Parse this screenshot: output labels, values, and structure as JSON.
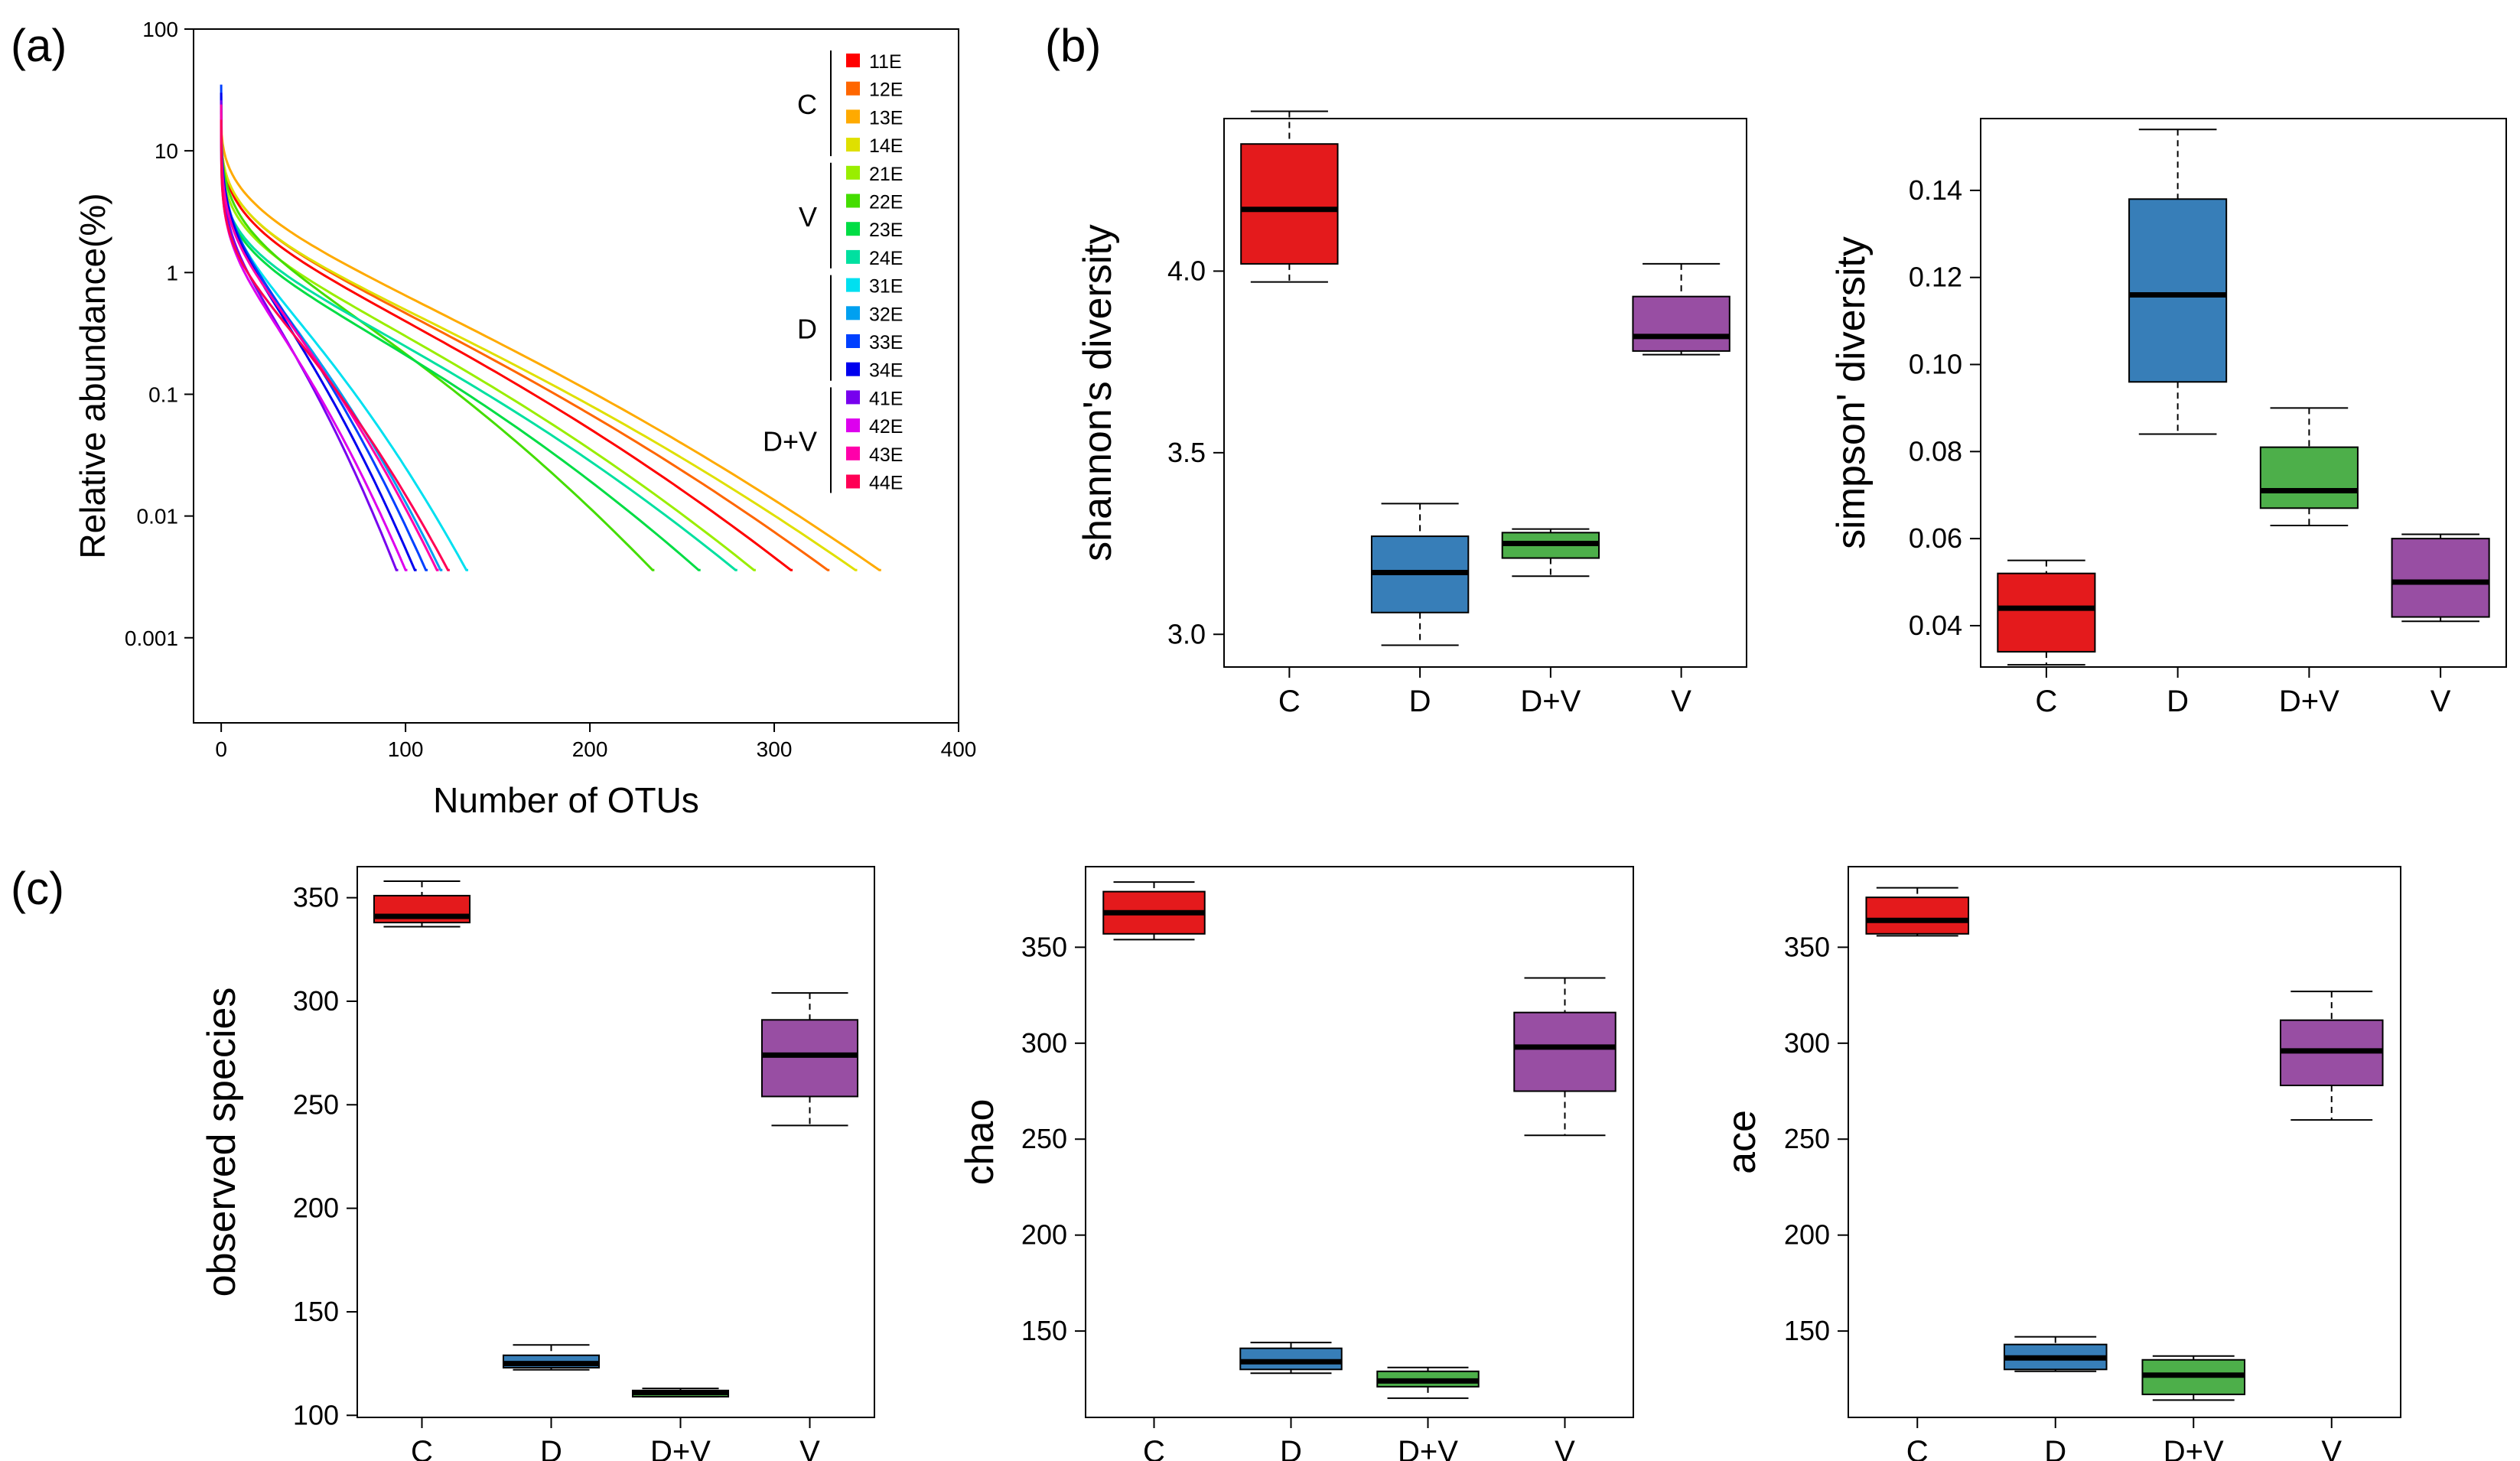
{
  "panels": [
    {
      "id": "a",
      "label": "(a)"
    },
    {
      "id": "b",
      "label": "(b)"
    },
    {
      "id": "c",
      "label": "(c)"
    }
  ],
  "chart_data": [
    {
      "id": "rank_abundance",
      "panel": "a",
      "type": "line",
      "title": "",
      "xlabel": "Number of OTUs",
      "ylabel": "Relative abundance(%)",
      "xlim": [
        -15,
        400
      ],
      "ylim": [
        0.0002,
        100
      ],
      "yscale": "log",
      "xticks": [
        0,
        100,
        200,
        300,
        400
      ],
      "yticks": [
        {
          "value": 100,
          "label": "100"
        },
        {
          "value": 10,
          "label": "10"
        },
        {
          "value": 1,
          "label": "1"
        },
        {
          "value": 0.1,
          "label": "0.1"
        },
        {
          "value": 0.01,
          "label": "0.01"
        },
        {
          "value": 0.001,
          "label": "0.001"
        }
      ],
      "legend_groups": [
        {
          "label": "C",
          "entries": [
            "11E",
            "12E",
            "13E",
            "14E"
          ]
        },
        {
          "label": "V",
          "entries": [
            "21E",
            "22E",
            "23E",
            "24E"
          ]
        },
        {
          "label": "D",
          "entries": [
            "31E",
            "32E",
            "33E",
            "34E"
          ]
        },
        {
          "label": "D+V",
          "entries": [
            "41E",
            "42E",
            "43E",
            "44E"
          ]
        }
      ],
      "series": [
        {
          "name": "11E",
          "color": "#ff0000",
          "start": 18,
          "bend": 1.1,
          "end_x": 310,
          "end_y": 0.0036
        },
        {
          "name": "12E",
          "color": "#ff6600",
          "start": 16,
          "bend": 1.2,
          "end_x": 330,
          "end_y": 0.0036
        },
        {
          "name": "13E",
          "color": "#ffaa00",
          "start": 20,
          "bend": 1.25,
          "end_x": 358,
          "end_y": 0.0036
        },
        {
          "name": "14E",
          "color": "#dfe000",
          "start": 17,
          "bend": 1.15,
          "end_x": 345,
          "end_y": 0.0036
        },
        {
          "name": "21E",
          "color": "#99ee00",
          "start": 15,
          "bend": 1.05,
          "end_x": 290,
          "end_y": 0.0036
        },
        {
          "name": "22E",
          "color": "#44dd00",
          "start": 22,
          "bend": 1.0,
          "end_x": 235,
          "end_y": 0.0036
        },
        {
          "name": "23E",
          "color": "#00dd44",
          "start": 14,
          "bend": 0.95,
          "end_x": 260,
          "end_y": 0.0036
        },
        {
          "name": "24E",
          "color": "#00e0a0",
          "start": 13,
          "bend": 1.0,
          "end_x": 280,
          "end_y": 0.0036
        },
        {
          "name": "31E",
          "color": "#00e0f0",
          "start": 25,
          "bend": 0.9,
          "end_x": 134,
          "end_y": 0.0036
        },
        {
          "name": "32E",
          "color": "#00a0f0",
          "start": 28,
          "bend": 0.85,
          "end_x": 120,
          "end_y": 0.0036
        },
        {
          "name": "33E",
          "color": "#0040ff",
          "start": 35,
          "bend": 0.85,
          "end_x": 112,
          "end_y": 0.0036
        },
        {
          "name": "34E",
          "color": "#0000ee",
          "start": 30,
          "bend": 0.9,
          "end_x": 106,
          "end_y": 0.0036
        },
        {
          "name": "41E",
          "color": "#7700ee",
          "start": 26,
          "bend": 0.85,
          "end_x": 96,
          "end_y": 0.0036
        },
        {
          "name": "42E",
          "color": "#dd00ee",
          "start": 20,
          "bend": 0.85,
          "end_x": 101,
          "end_y": 0.0036
        },
        {
          "name": "43E",
          "color": "#ff00aa",
          "start": 24,
          "bend": 0.9,
          "end_x": 118,
          "end_y": 0.0036
        },
        {
          "name": "44E",
          "color": "#ff0055",
          "start": 18,
          "bend": 0.85,
          "end_x": 124,
          "end_y": 0.0036
        }
      ]
    },
    {
      "id": "shannon",
      "panel": "b",
      "type": "box",
      "ylabel": "shannon's diversity",
      "categories": [
        "C",
        "D",
        "D+V",
        "V"
      ],
      "ylim": [
        2.91,
        4.42
      ],
      "yticks": [
        {
          "value": 3.0,
          "label": "3.0"
        },
        {
          "value": 3.5,
          "label": "3.5"
        },
        {
          "value": 4.0,
          "label": "4.0"
        }
      ],
      "boxes": [
        {
          "name": "C",
          "color": "#e41a1c",
          "min": 3.97,
          "q1": 4.02,
          "median": 4.17,
          "q3": 4.35,
          "max": 4.44
        },
        {
          "name": "D",
          "color": "#377eb8",
          "min": 2.97,
          "q1": 3.06,
          "median": 3.17,
          "q3": 3.27,
          "max": 3.36
        },
        {
          "name": "D+V",
          "color": "#4daf4a",
          "min": 3.16,
          "q1": 3.21,
          "median": 3.25,
          "q3": 3.28,
          "max": 3.29
        },
        {
          "name": "V",
          "color": "#984ea3",
          "min": 3.77,
          "q1": 3.78,
          "median": 3.82,
          "q3": 3.93,
          "max": 4.02
        }
      ]
    },
    {
      "id": "simpson",
      "panel": "b",
      "type": "box",
      "ylabel": "simpson' diversity",
      "categories": [
        "C",
        "D",
        "D+V",
        "V"
      ],
      "ylim": [
        0.0305,
        0.1565
      ],
      "yticks": [
        {
          "value": 0.04,
          "label": "0.04"
        },
        {
          "value": 0.06,
          "label": "0.06"
        },
        {
          "value": 0.08,
          "label": "0.08"
        },
        {
          "value": 0.1,
          "label": "0.10"
        },
        {
          "value": 0.12,
          "label": "0.12"
        },
        {
          "value": 0.14,
          "label": "0.14"
        }
      ],
      "boxes": [
        {
          "name": "C",
          "color": "#e41a1c",
          "min": 0.031,
          "q1": 0.034,
          "median": 0.044,
          "q3": 0.052,
          "max": 0.055
        },
        {
          "name": "D",
          "color": "#377eb8",
          "min": 0.084,
          "q1": 0.096,
          "median": 0.116,
          "q3": 0.138,
          "max": 0.154
        },
        {
          "name": "D+V",
          "color": "#4daf4a",
          "min": 0.063,
          "q1": 0.067,
          "median": 0.071,
          "q3": 0.081,
          "max": 0.09
        },
        {
          "name": "V",
          "color": "#984ea3",
          "min": 0.041,
          "q1": 0.042,
          "median": 0.05,
          "q3": 0.06,
          "max": 0.061
        }
      ]
    },
    {
      "id": "observed",
      "panel": "c",
      "type": "box",
      "ylabel": "observed species",
      "categories": [
        "C",
        "D",
        "D+V",
        "V"
      ],
      "ylim": [
        99,
        365
      ],
      "yticks": [
        {
          "value": 100,
          "label": "100"
        },
        {
          "value": 150,
          "label": "150"
        },
        {
          "value": 200,
          "label": "200"
        },
        {
          "value": 250,
          "label": "250"
        },
        {
          "value": 300,
          "label": "300"
        },
        {
          "value": 350,
          "label": "350"
        }
      ],
      "boxes": [
        {
          "name": "C",
          "color": "#e41a1c",
          "min": 336,
          "q1": 338,
          "median": 341,
          "q3": 351,
          "max": 358
        },
        {
          "name": "D",
          "color": "#377eb8",
          "min": 122,
          "q1": 123,
          "median": 125,
          "q3": 129,
          "max": 134
        },
        {
          "name": "D+V",
          "color": "#4daf4a",
          "min": 109,
          "q1": 109,
          "median": 111,
          "q3": 112,
          "max": 113
        },
        {
          "name": "V",
          "color": "#984ea3",
          "min": 240,
          "q1": 254,
          "median": 274,
          "q3": 291,
          "max": 304
        }
      ]
    },
    {
      "id": "chao",
      "panel": "c",
      "type": "box",
      "ylabel": "chao",
      "categories": [
        "C",
        "D",
        "D+V",
        "V"
      ],
      "ylim": [
        105,
        392
      ],
      "yticks": [
        {
          "value": 150,
          "label": "150"
        },
        {
          "value": 200,
          "label": "200"
        },
        {
          "value": 250,
          "label": "250"
        },
        {
          "value": 300,
          "label": "300"
        },
        {
          "value": 350,
          "label": "350"
        }
      ],
      "boxes": [
        {
          "name": "C",
          "color": "#e41a1c",
          "min": 354,
          "q1": 357,
          "median": 368,
          "q3": 379,
          "max": 384
        },
        {
          "name": "D",
          "color": "#377eb8",
          "min": 128,
          "q1": 130,
          "median": 134,
          "q3": 141,
          "max": 144
        },
        {
          "name": "D+V",
          "color": "#4daf4a",
          "min": 115,
          "q1": 121,
          "median": 124,
          "q3": 129,
          "max": 131
        },
        {
          "name": "V",
          "color": "#984ea3",
          "min": 252,
          "q1": 275,
          "median": 298,
          "q3": 316,
          "max": 334
        }
      ]
    },
    {
      "id": "ace",
      "panel": "c",
      "type": "box",
      "ylabel": "ace",
      "categories": [
        "C",
        "D",
        "D+V",
        "V"
      ],
      "ylim": [
        105,
        392
      ],
      "yticks": [
        {
          "value": 150,
          "label": "150"
        },
        {
          "value": 200,
          "label": "200"
        },
        {
          "value": 250,
          "label": "250"
        },
        {
          "value": 300,
          "label": "300"
        },
        {
          "value": 350,
          "label": "350"
        }
      ],
      "boxes": [
        {
          "name": "C",
          "color": "#e41a1c",
          "min": 356,
          "q1": 357,
          "median": 364,
          "q3": 376,
          "max": 381
        },
        {
          "name": "D",
          "color": "#377eb8",
          "min": 129,
          "q1": 130,
          "median": 136,
          "q3": 143,
          "max": 147
        },
        {
          "name": "D+V",
          "color": "#4daf4a",
          "min": 114,
          "q1": 117,
          "median": 127,
          "q3": 135,
          "max": 137
        },
        {
          "name": "V",
          "color": "#984ea3",
          "min": 260,
          "q1": 278,
          "median": 296,
          "q3": 312,
          "max": 327
        }
      ]
    }
  ]
}
